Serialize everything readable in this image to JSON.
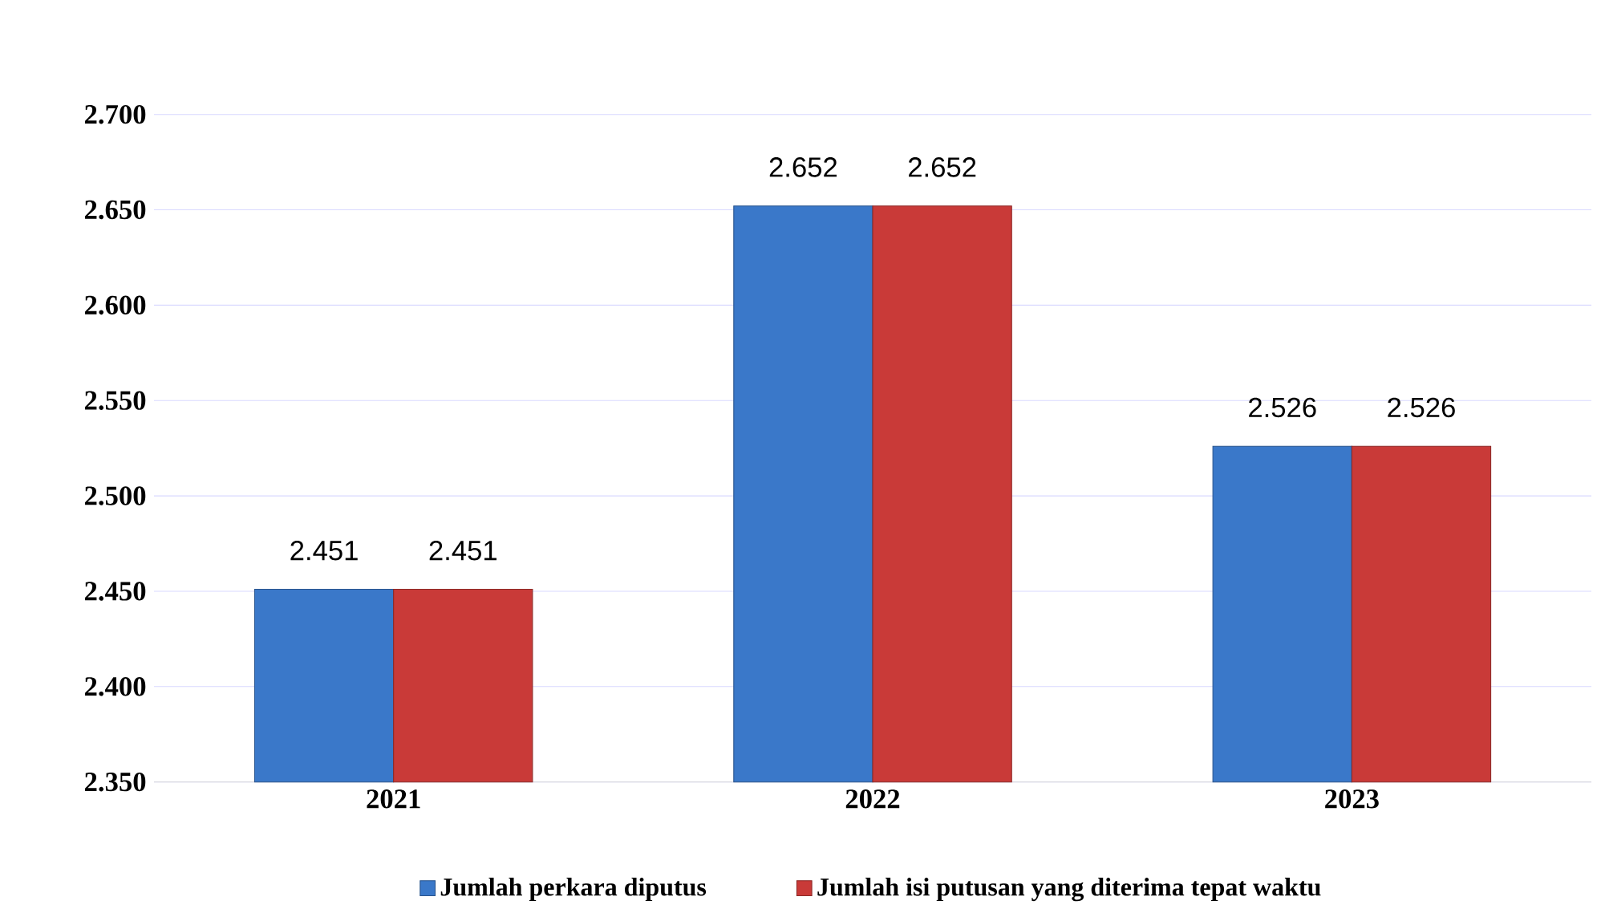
{
  "chart_data": {
    "type": "bar",
    "categories": [
      "2021",
      "2022",
      "2023"
    ],
    "series": [
      {
        "name": "Jumlah perkara diputus",
        "color": "#3a78c9",
        "values": [
          2451,
          2652,
          2526
        ],
        "value_labels": [
          "2.451",
          "2.652",
          "2.526"
        ]
      },
      {
        "name": "Jumlah isi putusan yang diterima tepat waktu",
        "color": "#c93a38",
        "values": [
          2451,
          2652,
          2526
        ],
        "value_labels": [
          "2.451",
          "2.652",
          "2.526"
        ]
      }
    ],
    "ylim": [
      2350,
      2700
    ],
    "yticks": [
      {
        "value": 2350,
        "label": "2.350"
      },
      {
        "value": 2400,
        "label": "2.400"
      },
      {
        "value": 2450,
        "label": "2.450"
      },
      {
        "value": 2500,
        "label": "2.500"
      },
      {
        "value": 2550,
        "label": "2.550"
      },
      {
        "value": 2600,
        "label": "2.600"
      },
      {
        "value": 2650,
        "label": "2.650"
      },
      {
        "value": 2700,
        "label": "2.700"
      }
    ],
    "grid": "y",
    "legend": "bottom"
  }
}
